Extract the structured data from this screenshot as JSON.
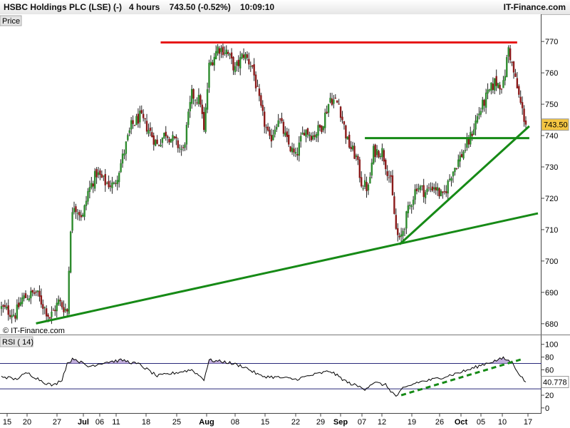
{
  "header": {
    "title": "HSBC Holdings PLC (LSE) (-)   4 hours    743.50 (-0.52%)    10:09:10",
    "brand": "IT-Finance.com"
  },
  "colors": {
    "up": "#2e8b2e",
    "down": "#8b1a1a",
    "resistance": "#e61919",
    "support": "#168a16",
    "rsi_line": "#000000",
    "rsi_band": "#2a2a7a",
    "rsi_overbought_fill": "#b69fd6",
    "last_price_badge": "#f4c542"
  },
  "chart_data": [
    {
      "type": "candlestick",
      "panel_label": "Price",
      "watermark": "© IT-Finance.com",
      "y_ticks": [
        680,
        690,
        700,
        710,
        720,
        730,
        740,
        750,
        760,
        770
      ],
      "ylim": [
        677,
        778
      ],
      "last_price_label": "743.50",
      "x_tick_labels": [
        "15",
        "20",
        "27",
        "Jul",
        "06",
        "11",
        "18",
        "25",
        "Aug",
        "08",
        "15",
        "22",
        "29",
        "Sep",
        "07",
        "12",
        "19",
        "26",
        "Oct",
        "05",
        "10",
        "17"
      ],
      "x_tick_bold": [
        "Jul",
        "Aug",
        "Sep",
        "Oct"
      ],
      "close_path": [
        [
          0,
          685
        ],
        [
          8,
          683
        ],
        [
          12,
          688
        ],
        [
          20,
          690
        ],
        [
          25,
          685
        ],
        [
          28,
          682
        ],
        [
          33,
          687
        ],
        [
          38,
          684
        ],
        [
          40,
          711
        ],
        [
          42,
          718
        ],
        [
          47,
          714
        ],
        [
          50,
          722
        ],
        [
          55,
          728
        ],
        [
          60,
          725
        ],
        [
          65,
          724
        ],
        [
          70,
          733
        ],
        [
          75,
          743
        ],
        [
          80,
          746
        ],
        [
          85,
          742
        ],
        [
          90,
          737
        ],
        [
          95,
          741
        ],
        [
          100,
          738
        ],
        [
          105,
          735
        ],
        [
          110,
          753
        ],
        [
          115,
          751
        ],
        [
          117,
          741
        ],
        [
          120,
          762
        ],
        [
          125,
          768
        ],
        [
          130,
          767
        ],
        [
          135,
          761
        ],
        [
          140,
          766
        ],
        [
          145,
          762
        ],
        [
          150,
          748
        ],
        [
          155,
          738
        ],
        [
          160,
          746
        ],
        [
          165,
          738
        ],
        [
          170,
          733
        ],
        [
          175,
          742
        ],
        [
          180,
          740
        ],
        [
          185,
          743
        ],
        [
          190,
          752
        ],
        [
          195,
          750
        ],
        [
          200,
          738
        ],
        [
          205,
          733
        ],
        [
          208,
          725
        ],
        [
          212,
          723
        ],
        [
          215,
          735
        ],
        [
          220,
          735
        ],
        [
          225,
          725
        ],
        [
          228,
          710
        ],
        [
          230,
          706
        ],
        [
          235,
          716
        ],
        [
          240,
          724
        ],
        [
          245,
          722
        ],
        [
          250,
          724
        ],
        [
          255,
          720
        ],
        [
          260,
          728
        ],
        [
          265,
          733
        ],
        [
          270,
          738
        ],
        [
          275,
          746
        ],
        [
          280,
          752
        ],
        [
          285,
          757
        ],
        [
          290,
          756
        ],
        [
          293,
          768
        ],
        [
          296,
          760
        ],
        [
          300,
          750
        ],
        [
          303,
          743.5
        ]
      ],
      "annotations": {
        "resistance": {
          "from": [
            92,
            769.7
          ],
          "to": [
            298,
            769.7
          ]
        },
        "support_level": {
          "from": [
            210,
            739.2
          ],
          "to": [
            305,
            739.2
          ]
        },
        "long_trendline": {
          "from": [
            20,
            680.1
          ],
          "to": [
            310,
            715.2
          ]
        },
        "short_trendline": {
          "from": [
            230,
            705.3
          ],
          "to": [
            305,
            743
          ]
        }
      }
    },
    {
      "type": "line",
      "name": "RSI ( 14)",
      "y_ticks": [
        0,
        20,
        40,
        60,
        80,
        100
      ],
      "ylim": [
        -8,
        112
      ],
      "bands": [
        30,
        70
      ],
      "last_value_label": "40.778",
      "rsi_path": [
        [
          0,
          50
        ],
        [
          8,
          45
        ],
        [
          15,
          55
        ],
        [
          25,
          40
        ],
        [
          30,
          35
        ],
        [
          35,
          45
        ],
        [
          38,
          70
        ],
        [
          42,
          78
        ],
        [
          50,
          65
        ],
        [
          60,
          72
        ],
        [
          70,
          75
        ],
        [
          80,
          68
        ],
        [
          90,
          50
        ],
        [
          100,
          55
        ],
        [
          110,
          60
        ],
        [
          117,
          45
        ],
        [
          120,
          75
        ],
        [
          130,
          72
        ],
        [
          140,
          65
        ],
        [
          150,
          50
        ],
        [
          160,
          48
        ],
        [
          170,
          45
        ],
        [
          180,
          52
        ],
        [
          190,
          58
        ],
        [
          200,
          40
        ],
        [
          210,
          30
        ],
        [
          215,
          40
        ],
        [
          222,
          36
        ],
        [
          228,
          18
        ],
        [
          232,
          30
        ],
        [
          240,
          40
        ],
        [
          250,
          45
        ],
        [
          260,
          52
        ],
        [
          270,
          60
        ],
        [
          280,
          70
        ],
        [
          290,
          78
        ],
        [
          295,
          72
        ],
        [
          300,
          50
        ],
        [
          303,
          40.8
        ]
      ],
      "trendline": {
        "from": [
          231,
          20
        ],
        "to": [
          300,
          76
        ]
      }
    }
  ]
}
